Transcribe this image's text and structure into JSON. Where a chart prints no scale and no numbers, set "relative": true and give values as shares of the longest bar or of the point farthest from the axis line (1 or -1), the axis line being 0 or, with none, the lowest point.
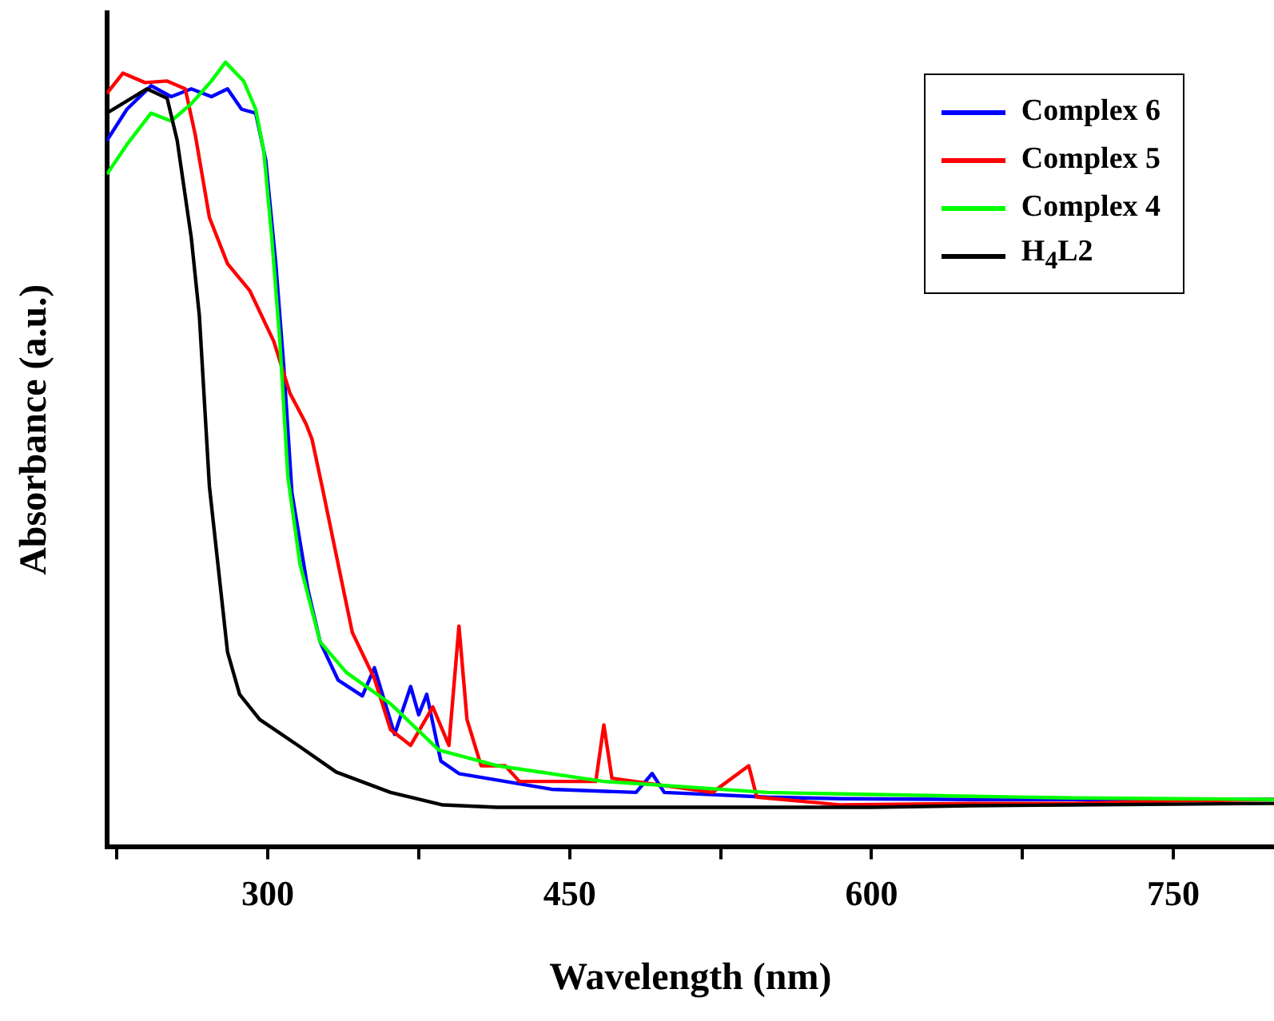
{
  "chart_data": {
    "type": "line",
    "xlabel": "Wavelength (nm)",
    "ylabel": "Absorbance (a.u.)",
    "relative": true,
    "legend": "top right",
    "marker": "none",
    "line_style": "solid",
    "xlim": [
      220,
      800
    ],
    "xticks": [
      {
        "value": 225,
        "label": null
      },
      300,
      {
        "value": 375,
        "label": null
      },
      450,
      {
        "value": 525,
        "label": null
      },
      600,
      {
        "value": 675,
        "label": null
      },
      750
    ],
    "series": [
      {
        "name": "Complex 6",
        "color": "#0000ff",
        "x": [
          220,
          230,
          242,
          252,
          262,
          272,
          280,
          287,
          294,
          299,
          304,
          308,
          312,
          320,
          326,
          335,
          347,
          353,
          363,
          371,
          375,
          379,
          386,
          395,
          441,
          483,
          491,
          497,
          548,
          585,
          650,
          700,
          750,
          800
        ],
        "values": [
          0.9,
          0.94,
          0.97,
          0.956,
          0.966,
          0.956,
          0.966,
          0.94,
          0.935,
          0.875,
          0.743,
          0.61,
          0.451,
          0.327,
          0.261,
          0.212,
          0.192,
          0.228,
          0.143,
          0.204,
          0.168,
          0.194,
          0.109,
          0.093,
          0.073,
          0.069,
          0.093,
          0.069,
          0.063,
          0.061,
          0.06,
          0.06,
          0.06,
          0.06
        ]
      },
      {
        "name": "Complex 5",
        "color": "#ff0000",
        "x": [
          220,
          228,
          239,
          250,
          259,
          264,
          271,
          280,
          291,
          303,
          311,
          319,
          322,
          327,
          334,
          342,
          353,
          361,
          371,
          382,
          390,
          395,
          399,
          406,
          418,
          425,
          463,
          467,
          471,
          521,
          539,
          543,
          585,
          650,
          700,
          750,
          800
        ],
        "values": [
          0.96,
          0.986,
          0.974,
          0.976,
          0.966,
          0.907,
          0.802,
          0.743,
          0.709,
          0.644,
          0.578,
          0.539,
          0.519,
          0.459,
          0.372,
          0.273,
          0.214,
          0.149,
          0.129,
          0.178,
          0.129,
          0.281,
          0.162,
          0.103,
          0.103,
          0.083,
          0.083,
          0.155,
          0.087,
          0.069,
          0.103,
          0.063,
          0.053,
          0.055,
          0.055,
          0.058,
          0.06
        ]
      },
      {
        "name": "Complex 4",
        "color": "#00ff00",
        "x": [
          220,
          230,
          242,
          252,
          262,
          272,
          279,
          288,
          294,
          298,
          302,
          306,
          310,
          316,
          326,
          339,
          361,
          385,
          414,
          467,
          548,
          585,
          650,
          700,
          750,
          800
        ],
        "values": [
          0.857,
          0.895,
          0.935,
          0.925,
          0.947,
          0.976,
          1,
          0.976,
          0.94,
          0.887,
          0.776,
          0.644,
          0.471,
          0.36,
          0.261,
          0.222,
          0.182,
          0.123,
          0.103,
          0.083,
          0.069,
          0.067,
          0.064,
          0.062,
          0.061,
          0.06
        ]
      },
      {
        "name": "H$_{4}$L2",
        "color": "#000000",
        "x": [
          220,
          240,
          250,
          255,
          262,
          266,
          271,
          280,
          286,
          296,
          315,
          334,
          361,
          387,
          414,
          500,
          600,
          650,
          700,
          750,
          800
        ],
        "values": [
          0.935,
          0.966,
          0.954,
          0.9,
          0.776,
          0.677,
          0.459,
          0.248,
          0.194,
          0.162,
          0.129,
          0.095,
          0.069,
          0.053,
          0.05,
          0.05,
          0.05,
          0.052,
          0.053,
          0.054,
          0.055
        ]
      }
    ]
  }
}
